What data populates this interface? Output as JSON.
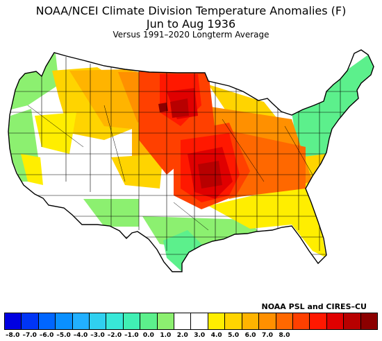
{
  "header": {
    "title": "NOAA/NCEI Climate Division Temperature Anomalies (F)",
    "period": "Jun to Aug 1936",
    "baseline": "Versus 1991–2020 Longterm Average"
  },
  "credit": "NOAA PSL and CIRES–CU",
  "legend": {
    "colors": [
      "#0000e0",
      "#0035f5",
      "#0066ff",
      "#0a90ff",
      "#22b0ff",
      "#30d0f0",
      "#38e8d8",
      "#40f0b4",
      "#5cf08c",
      "#8cf070",
      "#ffffff",
      "#ffffff",
      "#ffee00",
      "#ffd400",
      "#ffb400",
      "#ff9000",
      "#ff6800",
      "#ff4000",
      "#ff1800",
      "#e00000",
      "#b80000",
      "#8c0000"
    ],
    "ticks": [
      "–8.0",
      "–7.0",
      "–6.0",
      "–5.0",
      "–4.0",
      "–3.0",
      "–2.0",
      "–1.0",
      "0.0",
      "1.0",
      "2.0",
      "3.0",
      "4.0",
      "5.0",
      "6.0",
      "7.0",
      "8.0"
    ],
    "tick_bins": [
      1,
      3,
      5,
      7,
      9,
      11,
      13,
      15,
      17,
      19,
      21,
      23,
      25,
      27,
      29,
      31,
      33
    ]
  },
  "map_colors": {
    "white": "#ffffff",
    "light_green": "#8cf070",
    "green": "#5cf08c",
    "yellow": "#ffee00",
    "gold": "#ffd400",
    "light_orange": "#ffb400",
    "orange": "#ff9000",
    "dark_orange": "#ff6800",
    "red_orange": "#ff4000",
    "red": "#ff1800",
    "crimson": "#e00000",
    "dark_red": "#b80000",
    "maroon": "#8c0000"
  }
}
